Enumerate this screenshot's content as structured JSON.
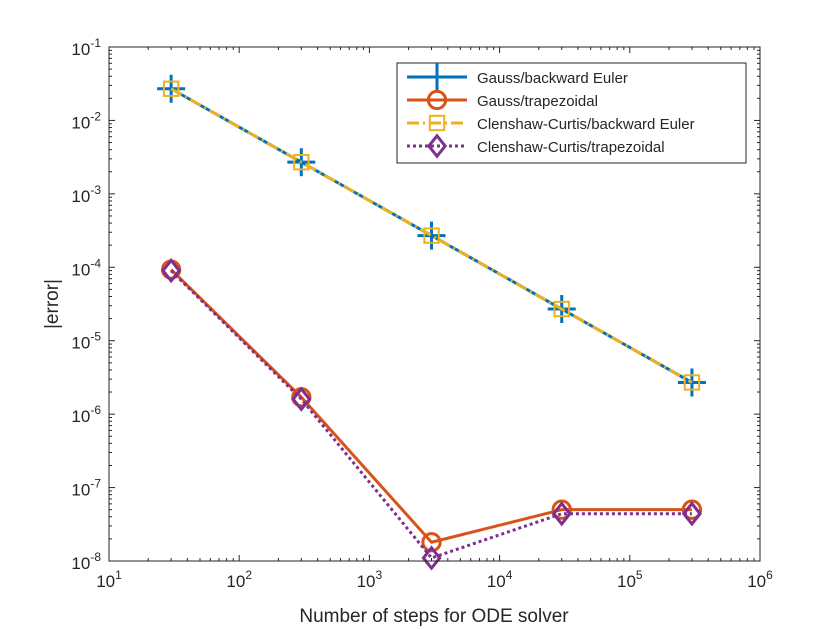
{
  "chart_data": {
    "type": "line",
    "xscale": "log",
    "yscale": "log",
    "xlim": [
      10,
      1000000
    ],
    "ylim": [
      1e-08,
      0.1
    ],
    "xlabel": "Number of steps for ODE solver",
    "ylabel": "|error|",
    "x_ticks": [
      {
        "value": 10,
        "base": "10",
        "exp": "1"
      },
      {
        "value": 100,
        "base": "10",
        "exp": "2"
      },
      {
        "value": 1000,
        "base": "10",
        "exp": "3"
      },
      {
        "value": 10000,
        "base": "10",
        "exp": "4"
      },
      {
        "value": 100000,
        "base": "10",
        "exp": "5"
      },
      {
        "value": 1000000,
        "base": "10",
        "exp": "6"
      }
    ],
    "y_ticks": [
      {
        "value": 1e-08,
        "base": "10",
        "exp": "-8"
      },
      {
        "value": 1e-07,
        "base": "10",
        "exp": "-7"
      },
      {
        "value": 1e-06,
        "base": "10",
        "exp": "-6"
      },
      {
        "value": 1e-05,
        "base": "10",
        "exp": "-5"
      },
      {
        "value": 0.0001,
        "base": "10",
        "exp": "-4"
      },
      {
        "value": 0.001,
        "base": "10",
        "exp": "-3"
      },
      {
        "value": 0.01,
        "base": "10",
        "exp": "-2"
      },
      {
        "value": 0.1,
        "base": "10",
        "exp": "-1"
      }
    ],
    "legend_position": "top-right",
    "x": [
      30,
      300,
      3000,
      30000,
      300000
    ],
    "series": [
      {
        "name": "Gauss/backward Euler",
        "color": "#0072BD",
        "line": "solid",
        "marker": "plus",
        "values": [
          0.027,
          0.0027,
          0.00027,
          2.7e-05,
          2.7e-06
        ]
      },
      {
        "name": "Gauss/trapezoidal",
        "color": "#D95319",
        "line": "solid",
        "marker": "circle",
        "values": [
          9.3e-05,
          1.7e-06,
          1.8e-08,
          5e-08,
          5e-08
        ]
      },
      {
        "name": "Clenshaw-Curtis/backward Euler",
        "color": "#EDB120",
        "line": "dashdot",
        "marker": "square",
        "values": [
          0.027,
          0.0027,
          0.00027,
          2.7e-05,
          2.7e-06
        ]
      },
      {
        "name": "Clenshaw-Curtis/trapezoidal",
        "color": "#7E2F8E",
        "line": "dotted",
        "marker": "diamond",
        "values": [
          9e-05,
          1.6e-06,
          1.1e-08,
          4.4e-08,
          4.4e-08
        ]
      }
    ]
  }
}
